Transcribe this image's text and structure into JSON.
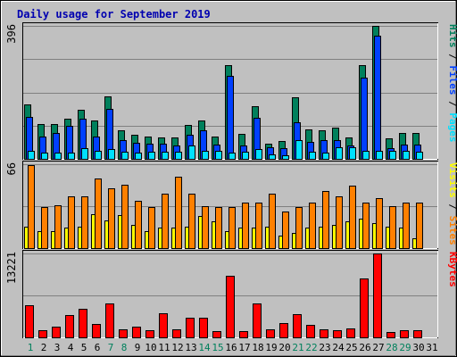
{
  "title": "Daily usage for September 2019",
  "colors": {
    "frame_bg": "#c0c0c0",
    "title": "#0000b0",
    "hits": "#00805c",
    "files": "#0040ff",
    "pages": "#00e0ff",
    "visits": "#ffff00",
    "sites": "#ff8000",
    "kbytes": "#ff0000",
    "weekend_label": "#00805c",
    "weekday_label": "#000000"
  },
  "chart_data": [
    {
      "type": "bar",
      "panel": "hits-files-pages",
      "ylabel_parts": [
        "Pages",
        "Files",
        "Hits"
      ],
      "ylim": [
        0,
        396
      ],
      "y_tick_label": "396",
      "categories": [
        "1",
        "2",
        "3",
        "4",
        "5",
        "6",
        "7",
        "8",
        "9",
        "10",
        "11",
        "12",
        "13",
        "14",
        "15",
        "16",
        "17",
        "18",
        "19",
        "20",
        "21",
        "22",
        "23",
        "24",
        "25",
        "26",
        "27",
        "28",
        "29",
        "30",
        "31"
      ],
      "weekend_days": [
        "1",
        "7",
        "8",
        "14",
        "15",
        "21",
        "22",
        "28",
        "29"
      ],
      "series": [
        {
          "name": "Hits",
          "values": [
            162,
            104,
            104,
            120,
            146,
            115,
            186,
            85,
            72,
            67,
            64,
            64,
            101,
            115,
            67,
            278,
            74,
            158,
            46,
            53,
            183,
            88,
            85,
            93,
            64,
            278,
            396,
            62,
            78,
            78,
            0
          ]
        },
        {
          "name": "Files",
          "values": [
            124,
            67,
            78,
            99,
            120,
            67,
            149,
            56,
            48,
            46,
            46,
            39,
            72,
            85,
            42,
            246,
            39,
            122,
            35,
            32,
            109,
            51,
            56,
            56,
            39,
            241,
            368,
            32,
            42,
            42,
            0
          ]
        },
        {
          "name": "Pages",
          "values": [
            25,
            18,
            18,
            18,
            32,
            25,
            28,
            21,
            18,
            21,
            21,
            21,
            39,
            25,
            25,
            18,
            21,
            28,
            14,
            11,
            56,
            21,
            18,
            35,
            35,
            25,
            25,
            25,
            25,
            21,
            0
          ]
        }
      ]
    },
    {
      "type": "bar",
      "panel": "visits-sites",
      "ylabel_parts": [
        "Sites",
        "Visits"
      ],
      "ylim": [
        0,
        66
      ],
      "y_tick_label": "66",
      "categories": [
        "1",
        "2",
        "3",
        "4",
        "5",
        "6",
        "7",
        "8",
        "9",
        "10",
        "11",
        "12",
        "13",
        "14",
        "15",
        "16",
        "17",
        "18",
        "19",
        "20",
        "21",
        "22",
        "23",
        "24",
        "25",
        "26",
        "27",
        "28",
        "29",
        "30",
        "31"
      ],
      "series": [
        {
          "name": "Sites",
          "values": [
            65,
            32,
            34,
            41,
            41,
            55,
            47,
            50,
            37,
            32,
            43,
            56,
            43,
            33,
            32,
            32,
            36,
            36,
            43,
            29,
            32,
            36,
            45,
            41,
            49,
            36,
            39,
            33,
            36,
            36,
            0
          ]
        },
        {
          "name": "Visits",
          "values": [
            17,
            13,
            13,
            16,
            17,
            27,
            22,
            26,
            18,
            13,
            16,
            16,
            17,
            25,
            21,
            13,
            16,
            16,
            17,
            10,
            12,
            16,
            17,
            18,
            21,
            23,
            20,
            17,
            16,
            8,
            0
          ]
        }
      ]
    },
    {
      "type": "bar",
      "panel": "kbytes",
      "ylabel_parts": [
        "KBytes"
      ],
      "ylim": [
        0,
        13221
      ],
      "y_tick_label": "13221",
      "categories": [
        "1",
        "2",
        "3",
        "4",
        "5",
        "6",
        "7",
        "8",
        "9",
        "10",
        "11",
        "12",
        "13",
        "14",
        "15",
        "16",
        "17",
        "18",
        "19",
        "20",
        "21",
        "22",
        "23",
        "24",
        "25",
        "26",
        "27",
        "28",
        "29",
        "30",
        "31"
      ],
      "series": [
        {
          "name": "KBytes",
          "values": [
            5050,
            1150,
            1620,
            3450,
            4500,
            2040,
            5300,
            1310,
            1630,
            1150,
            3800,
            1290,
            3150,
            3150,
            1000,
            9700,
            1050,
            5400,
            1310,
            2200,
            3600,
            1940,
            1310,
            1150,
            1460,
            9350,
            13221,
            900,
            1150,
            1150,
            0
          ]
        }
      ]
    }
  ]
}
